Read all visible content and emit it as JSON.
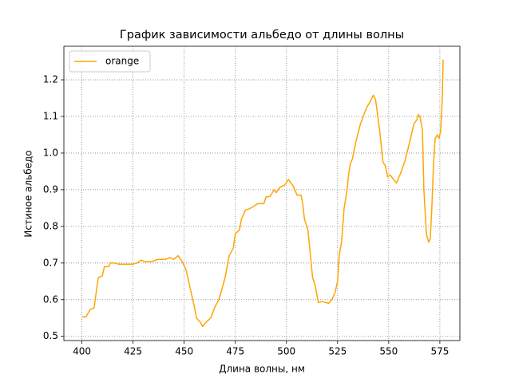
{
  "chart_data": {
    "type": "line",
    "title": "График зависимости альбедо от длины волны",
    "xlabel": "Длина волны, нм",
    "ylabel": "Истиное альбедо",
    "x": [
      400,
      402,
      404,
      406,
      407,
      408,
      410,
      411,
      413,
      414,
      416,
      418,
      420,
      425,
      427,
      429,
      431,
      435,
      437,
      441,
      443,
      445,
      447,
      449,
      451,
      453,
      455,
      456,
      458,
      459,
      461,
      463,
      465,
      467,
      469,
      470,
      471,
      472,
      474,
      475,
      477,
      478,
      480,
      482,
      484,
      486,
      489,
      490,
      492,
      494,
      495,
      497,
      499,
      501,
      503.3,
      505.2,
      507.2,
      508,
      508.8,
      510.5,
      512.8,
      514,
      515.6,
      517.5,
      520.6,
      522.2,
      523.8,
      525,
      525.8,
      527,
      528.2,
      529.4,
      530.6,
      531.2,
      532.3,
      533.9,
      536.2,
      538.2,
      539.3,
      540.9,
      542.5,
      543.6,
      545.6,
      547.2,
      548.4,
      549.5,
      550.7,
      553.8,
      555.8,
      557.4,
      558,
      560.7,
      562.3,
      563.7,
      564.5,
      565.3,
      566.5,
      567.2,
      568.4,
      569.5,
      570.3,
      571,
      571.9,
      572.7,
      573.8,
      574.6,
      575.4,
      576.2,
      576.6
    ],
    "series": [
      {
        "name": "orange",
        "color": "#ffa500",
        "values": [
          0.553,
          0.553,
          0.573,
          0.578,
          0.62,
          0.66,
          0.665,
          0.69,
          0.69,
          0.7,
          0.7,
          0.697,
          0.697,
          0.697,
          0.7,
          0.708,
          0.703,
          0.705,
          0.71,
          0.71,
          0.715,
          0.71,
          0.72,
          0.705,
          0.68,
          0.63,
          0.58,
          0.55,
          0.538,
          0.527,
          0.54,
          0.55,
          0.58,
          0.6,
          0.64,
          0.66,
          0.69,
          0.72,
          0.74,
          0.78,
          0.79,
          0.82,
          0.845,
          0.848,
          0.855,
          0.862,
          0.862,
          0.88,
          0.882,
          0.9,
          0.892,
          0.908,
          0.912,
          0.928,
          0.91,
          0.885,
          0.885,
          0.86,
          0.82,
          0.79,
          0.66,
          0.64,
          0.592,
          0.595,
          0.59,
          0.6,
          0.62,
          0.65,
          0.72,
          0.76,
          0.85,
          0.89,
          0.95,
          0.97,
          0.985,
          1.03,
          1.08,
          1.11,
          1.125,
          1.14,
          1.158,
          1.145,
          1.06,
          0.975,
          0.965,
          0.935,
          0.94,
          0.918,
          0.945,
          0.97,
          0.98,
          1.04,
          1.08,
          1.09,
          1.105,
          1.1,
          1.06,
          0.9,
          0.78,
          0.757,
          0.765,
          0.84,
          0.97,
          1.04,
          1.05,
          1.04,
          1.06,
          1.15,
          1.255
        ]
      }
    ],
    "xlim": [
      391.2,
      584.8
    ],
    "xticks": [
      400,
      425,
      450,
      475,
      500,
      525,
      550,
      575
    ],
    "ylim": [
      0.4885,
      1.2915
    ],
    "yticks": [
      {
        "value": 0.5,
        "label": "0.5"
      },
      0.6,
      0.7,
      0.8,
      0.9,
      {
        "value": 1.0,
        "label": "1.0"
      },
      1.1,
      1.2
    ],
    "grid": true,
    "legend": "upper left"
  }
}
